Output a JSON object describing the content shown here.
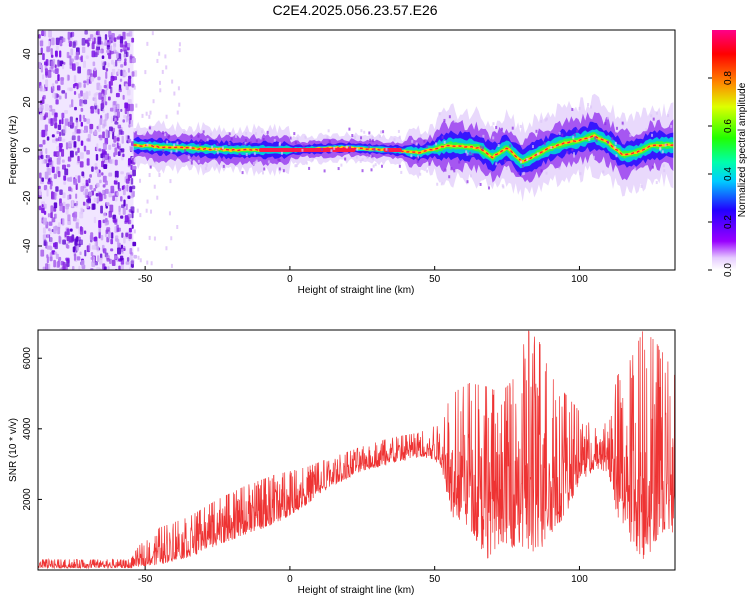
{
  "title": "C2E4.2025.056.23.57.E26",
  "chart_data": [
    {
      "type": "heatmap",
      "xlabel": "Height of straight line (km)",
      "ylabel": "Frequency (Hz)",
      "xlim": [
        -87,
        133
      ],
      "ylim": [
        -50,
        50
      ],
      "xticks": [
        -50,
        0,
        50,
        100
      ],
      "yticks": [
        40,
        20,
        0,
        -20,
        -40
      ],
      "colorbar": {
        "label": "Normalized spectral amplitude",
        "range": [
          0,
          1
        ],
        "ticks": [
          0.0,
          0.2,
          0.4,
          0.6,
          0.8
        ]
      },
      "noise_region_x": [
        -87,
        -54
      ],
      "center_frequency_track": [
        {
          "x": -54,
          "y": 2
        },
        {
          "x": -40,
          "y": 1
        },
        {
          "x": -20,
          "y": 0
        },
        {
          "x": 0,
          "y": 0
        },
        {
          "x": 20,
          "y": 1
        },
        {
          "x": 35,
          "y": 0
        },
        {
          "x": 45,
          "y": -1
        },
        {
          "x": 55,
          "y": 2
        },
        {
          "x": 65,
          "y": 1
        },
        {
          "x": 70,
          "y": -3
        },
        {
          "x": 75,
          "y": 1
        },
        {
          "x": 80,
          "y": -5
        },
        {
          "x": 85,
          "y": -2
        },
        {
          "x": 90,
          "y": 1
        },
        {
          "x": 95,
          "y": 3
        },
        {
          "x": 100,
          "y": 4
        },
        {
          "x": 105,
          "y": 6
        },
        {
          "x": 110,
          "y": 3
        },
        {
          "x": 115,
          "y": -2
        },
        {
          "x": 120,
          "y": -1
        },
        {
          "x": 125,
          "y": 2
        },
        {
          "x": 133,
          "y": 2
        }
      ]
    },
    {
      "type": "line",
      "xlabel": "Height of straight line (km)",
      "ylabel": "SNR (10 * v/v)",
      "xlim": [
        -87,
        133
      ],
      "ylim": [
        0,
        6800
      ],
      "xticks": [
        -50,
        0,
        50,
        100
      ],
      "yticks": [
        2000,
        4000,
        6000
      ],
      "color": "#ee3333",
      "envelope": [
        {
          "x": -87,
          "low": 50,
          "high": 300
        },
        {
          "x": -55,
          "low": 50,
          "high": 300
        },
        {
          "x": -52,
          "low": 100,
          "high": 700
        },
        {
          "x": -45,
          "low": 150,
          "high": 1200
        },
        {
          "x": -35,
          "low": 350,
          "high": 1500
        },
        {
          "x": -25,
          "low": 700,
          "high": 2000
        },
        {
          "x": -15,
          "low": 1000,
          "high": 2400
        },
        {
          "x": -5,
          "low": 1300,
          "high": 2700
        },
        {
          "x": 5,
          "low": 1800,
          "high": 2900
        },
        {
          "x": 15,
          "low": 2400,
          "high": 3200
        },
        {
          "x": 25,
          "low": 2800,
          "high": 3500
        },
        {
          "x": 35,
          "low": 3000,
          "high": 3750
        },
        {
          "x": 45,
          "low": 3200,
          "high": 3900
        },
        {
          "x": 52,
          "low": 3000,
          "high": 4200
        },
        {
          "x": 56,
          "low": 1500,
          "high": 5000
        },
        {
          "x": 62,
          "low": 1200,
          "high": 5300
        },
        {
          "x": 68,
          "low": 300,
          "high": 5200
        },
        {
          "x": 73,
          "low": 800,
          "high": 5000
        },
        {
          "x": 78,
          "low": 600,
          "high": 5500
        },
        {
          "x": 82,
          "low": 300,
          "high": 6800
        },
        {
          "x": 86,
          "low": 500,
          "high": 6500
        },
        {
          "x": 90,
          "low": 1000,
          "high": 5500
        },
        {
          "x": 95,
          "low": 1500,
          "high": 5000
        },
        {
          "x": 100,
          "low": 2500,
          "high": 4500
        },
        {
          "x": 105,
          "low": 2800,
          "high": 4000
        },
        {
          "x": 110,
          "low": 2800,
          "high": 4200
        },
        {
          "x": 113,
          "low": 1500,
          "high": 5500
        },
        {
          "x": 118,
          "low": 700,
          "high": 6000
        },
        {
          "x": 122,
          "low": 200,
          "high": 6800
        },
        {
          "x": 126,
          "low": 700,
          "high": 6500
        },
        {
          "x": 130,
          "low": 1200,
          "high": 6000
        },
        {
          "x": 133,
          "low": 1000,
          "high": 5500
        }
      ]
    }
  ]
}
